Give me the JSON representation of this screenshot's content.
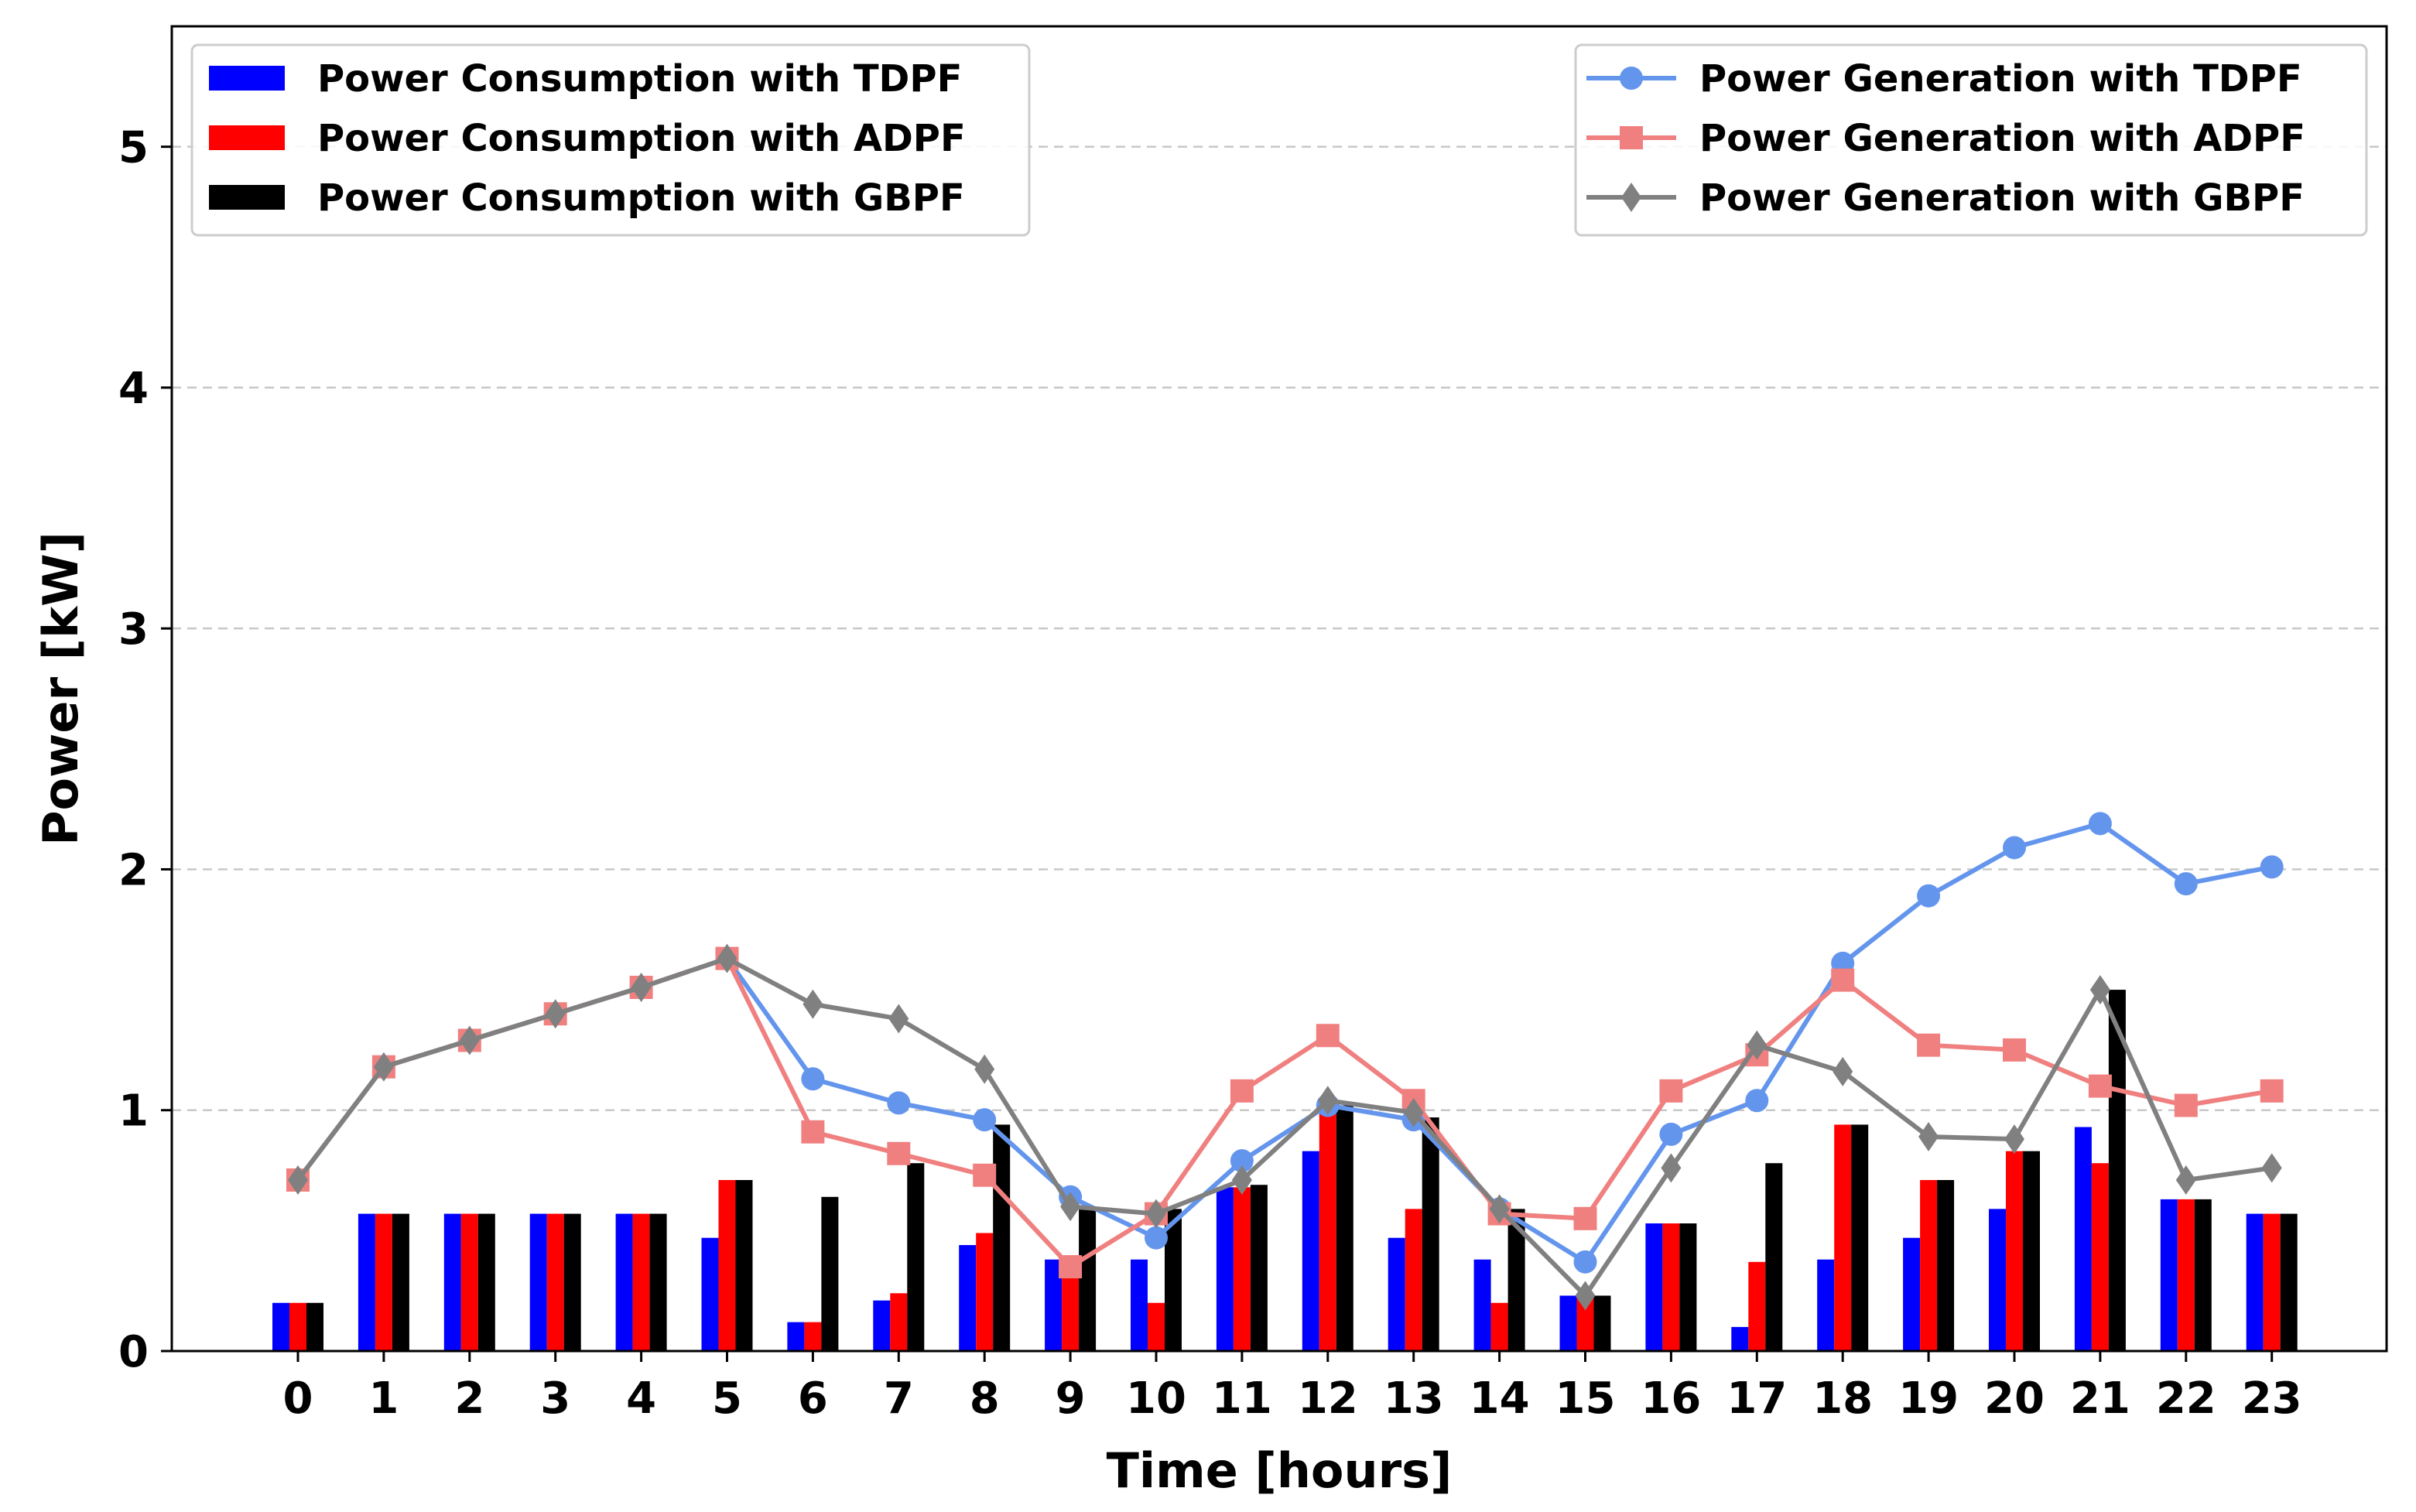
{
  "chart_data": {
    "type": "bar+line",
    "title": "",
    "xlabel": "Time [hours]",
    "ylabel": "Power [kW]",
    "ylim": [
      0,
      5.5
    ],
    "yticks": [
      0,
      1,
      2,
      3,
      4,
      5
    ],
    "grid": "horizontal dashed",
    "x": [
      "0",
      "1",
      "2",
      "3",
      "4",
      "5",
      "6",
      "7",
      "8",
      "9",
      "10",
      "11",
      "12",
      "13",
      "14",
      "15",
      "16",
      "17",
      "18",
      "19",
      "20",
      "21",
      "22",
      "23"
    ],
    "bar_series": [
      {
        "name": "Power Consumption with TDPF",
        "color": "#0000ff",
        "values": [
          0.2,
          0.57,
          0.57,
          0.57,
          0.57,
          0.47,
          0.12,
          0.21,
          0.44,
          0.38,
          0.38,
          0.68,
          0.83,
          0.47,
          0.38,
          0.23,
          0.53,
          0.1,
          0.38,
          0.47,
          0.59,
          0.93,
          0.63,
          0.57
        ]
      },
      {
        "name": "Power Consumption with ADPF",
        "color": "#ff0000",
        "values": [
          0.2,
          0.57,
          0.57,
          0.57,
          0.57,
          0.71,
          0.12,
          0.24,
          0.49,
          0.38,
          0.2,
          0.68,
          1.02,
          0.59,
          0.2,
          0.23,
          0.53,
          0.37,
          0.94,
          0.71,
          0.83,
          0.78,
          0.63,
          0.57
        ]
      },
      {
        "name": "Power Consumption with GBPF",
        "color": "#000000",
        "values": [
          0.2,
          0.57,
          0.57,
          0.57,
          0.57,
          0.71,
          0.64,
          0.78,
          0.94,
          0.59,
          0.59,
          0.69,
          1.02,
          0.97,
          0.59,
          0.23,
          0.53,
          0.78,
          0.94,
          0.71,
          0.83,
          1.5,
          0.63,
          0.57
        ]
      }
    ],
    "line_series": [
      {
        "name": "Power Generation with TDPF",
        "color": "#6495ed",
        "marker": "circle",
        "values": [
          0.71,
          1.18,
          1.29,
          1.4,
          1.51,
          1.63,
          1.13,
          1.03,
          0.96,
          0.64,
          0.47,
          0.79,
          1.02,
          0.96,
          0.59,
          0.37,
          0.9,
          1.04,
          1.61,
          1.89,
          2.09,
          2.19,
          1.94,
          2.01
        ]
      },
      {
        "name": "Power Generation with ADPF",
        "color": "#f08080",
        "marker": "square",
        "values": [
          0.71,
          1.18,
          1.29,
          1.4,
          1.51,
          1.63,
          0.91,
          0.82,
          0.73,
          0.35,
          0.57,
          1.08,
          1.31,
          1.04,
          0.57,
          0.55,
          1.08,
          1.23,
          1.54,
          1.27,
          1.25,
          1.1,
          1.02,
          1.08
        ]
      },
      {
        "name": "Power Generation with GBPF",
        "color": "#808080",
        "marker": "diamond",
        "values": [
          0.71,
          1.18,
          1.29,
          1.4,
          1.51,
          1.63,
          1.44,
          1.38,
          1.17,
          0.6,
          0.57,
          0.71,
          1.04,
          0.99,
          0.59,
          0.23,
          0.76,
          1.27,
          1.16,
          0.89,
          0.88,
          1.5,
          0.71,
          0.76
        ]
      }
    ],
    "legend_bars_position": "top-left",
    "legend_lines_position": "top-right"
  }
}
